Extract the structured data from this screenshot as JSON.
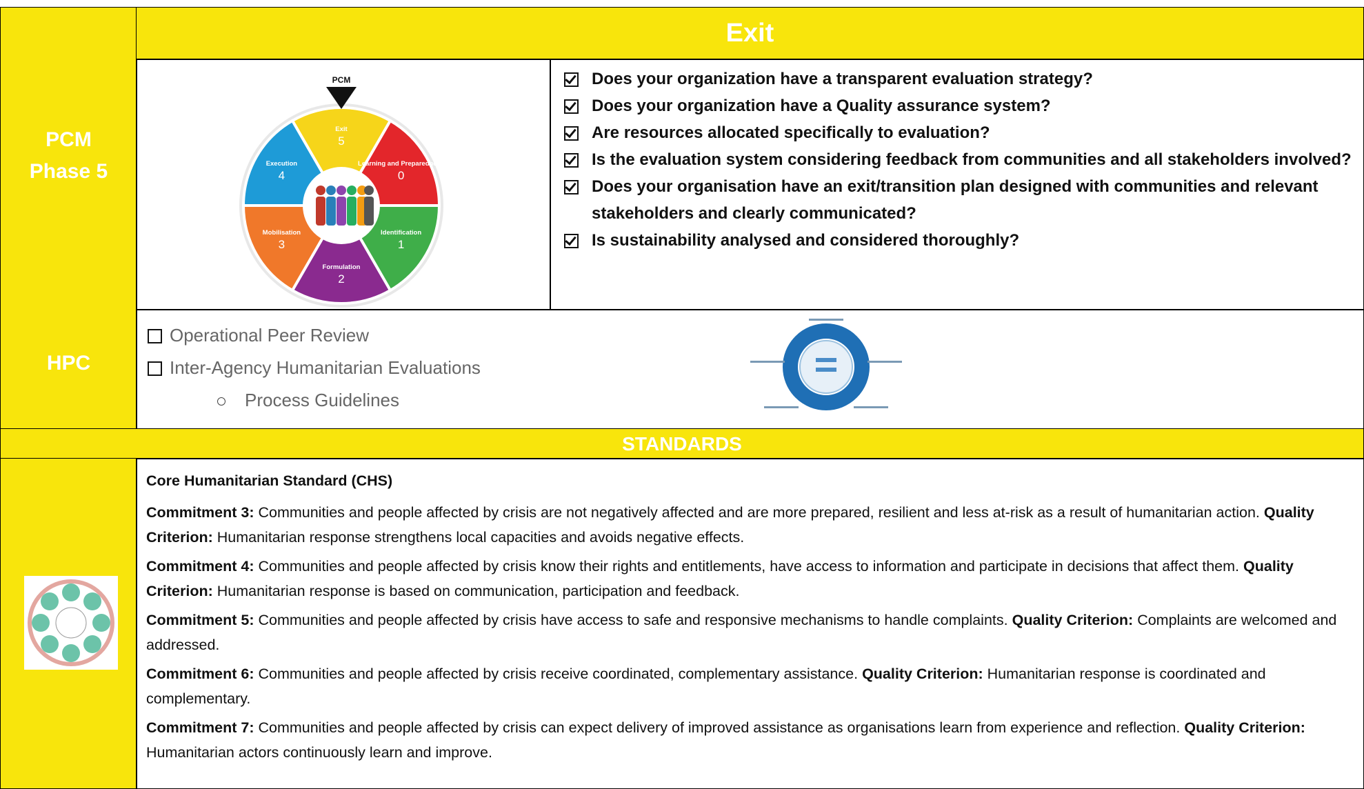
{
  "header": {
    "title": "Exit",
    "left_label": [
      "PCM",
      "Phase 5"
    ]
  },
  "pcm_wheel": {
    "pointer": "PCM",
    "segments": [
      {
        "name": "Exit",
        "number": "5"
      },
      {
        "name": "Learning and Preparedness",
        "number": "0"
      },
      {
        "name": "Identification",
        "number": "1"
      },
      {
        "name": "Formulation",
        "number": "2"
      },
      {
        "name": "Mobilisation",
        "number": "3"
      },
      {
        "name": "Execution",
        "number": "4"
      }
    ]
  },
  "questions": [
    "Does your organization have a transparent evaluation strategy?",
    "Does your organization have a Quality assurance system?",
    "Are resources allocated specifically to evaluation?",
    "Is the evaluation system considering feedback from communities and all stakeholders involved?",
    "Does your organisation have an exit/transition plan designed with communities and relevant stakeholders and clearly communicated?",
    "Is sustainability analysed and considered thoroughly?"
  ],
  "hpc": {
    "label": "HPC",
    "items": [
      "Operational Peer Review",
      "Inter-Agency Humanitarian Evaluations"
    ],
    "sub_items": [
      "Process Guidelines"
    ]
  },
  "standards": {
    "title": "STANDARDS",
    "heading": "Core Humanitarian Standard (CHS)",
    "commitments": [
      {
        "label": "Commitment 3:",
        "text": "Communities and people affected by crisis are not negatively affected and are more prepared, resilient and less at-risk as a result of humanitarian action.",
        "criterion_label": "Quality Criterion:",
        "criterion_text": "Humanitarian response strengthens local capacities and avoids negative effects."
      },
      {
        "label": "Commitment 4:",
        "text": "Communities and people affected by crisis know their rights and entitlements, have access to information and participate in decisions that affect them.",
        "criterion_label": "Quality Criterion:",
        "criterion_text": "Humanitarian response is based on communication, participation and feedback."
      },
      {
        "label": "Commitment 5:",
        "text": "Communities and people affected by crisis have access to safe and responsive mechanisms to handle complaints.",
        "criterion_label": "Quality Criterion:",
        "criterion_text": "Complaints are welcomed and addressed."
      },
      {
        "label": "Commitment 6:",
        "text": "Communities and people affected by crisis receive coordinated, complementary assistance.",
        "criterion_label": "Quality Criterion:",
        "criterion_text": "Humanitarian response is coordinated and complementary."
      },
      {
        "label": "Commitment 7:",
        "text": "Communities and people affected by crisis can expect delivery of improved assistance as organisations learn from experience and reflection.",
        "criterion_label": "Quality Criterion:",
        "criterion_text": "Humanitarian actors continuously learn and improve."
      }
    ]
  }
}
